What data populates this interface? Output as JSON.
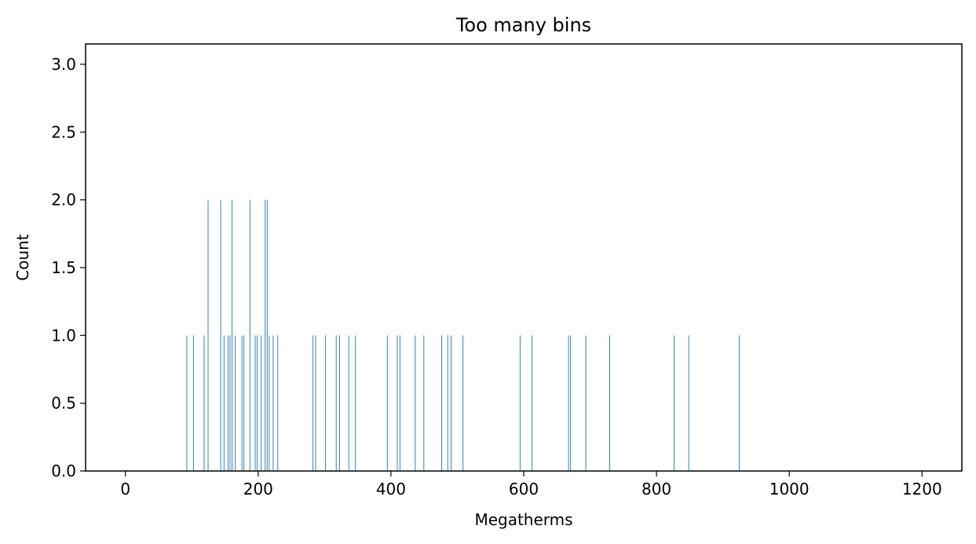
{
  "chart_data": {
    "type": "bar",
    "title": "Too many bins",
    "xlabel": "Megatherms",
    "ylabel": "Count",
    "xlim": [
      -60,
      1260
    ],
    "ylim": [
      0,
      3.15
    ],
    "xticks": [
      0,
      200,
      400,
      600,
      800,
      1000,
      1200
    ],
    "yticks": [
      0.0,
      0.5,
      1.0,
      1.5,
      2.0,
      2.5,
      3.0
    ],
    "xtick_labels": [
      "0",
      "200",
      "400",
      "600",
      "800",
      "1000",
      "1200"
    ],
    "ytick_labels": [
      "0.0",
      "0.5",
      "1.0",
      "1.5",
      "2.0",
      "2.5",
      "3.0"
    ],
    "grid": false,
    "bar_color": "#1f77b4",
    "bin_width": 1,
    "x": [
      92,
      102,
      118,
      124,
      143,
      148,
      154,
      157,
      160,
      165,
      175,
      178,
      187,
      195,
      198,
      204,
      210,
      213,
      216,
      222,
      229,
      282,
      286,
      301,
      317,
      322,
      336,
      346,
      394,
      409,
      413,
      436,
      449,
      476,
      485,
      490,
      508,
      594,
      612,
      667,
      670,
      693,
      729,
      826,
      848,
      924
    ],
    "values": [
      1,
      1,
      1,
      2,
      2,
      1,
      1,
      1,
      2,
      1,
      1,
      1,
      2,
      1,
      1,
      1,
      2,
      2,
      1,
      1,
      1,
      1,
      1,
      1,
      1,
      1,
      1,
      1,
      1,
      1,
      1,
      1,
      1,
      1,
      1,
      1,
      1,
      1,
      1,
      1,
      1,
      1,
      1,
      1,
      1,
      1
    ]
  }
}
